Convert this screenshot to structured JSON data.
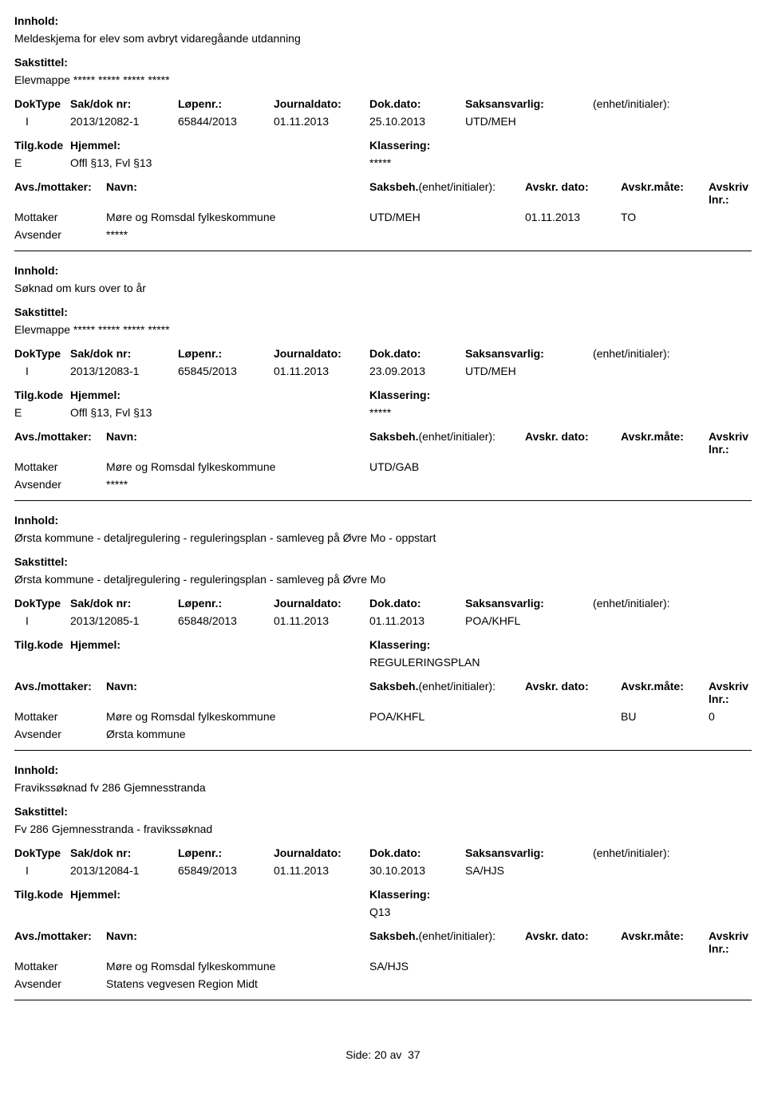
{
  "labels": {
    "innhold": "Innhold:",
    "sakstittel": "Sakstittel:",
    "doktype": "DokType",
    "sakdok": "Sak/dok nr:",
    "lopenr": "Løpenr.:",
    "journaldato": "Journaldato:",
    "dokdato": "Dok.dato:",
    "saksansvarlig": "Saksansvarlig:",
    "enhet": "(enhet/initialer):",
    "tilgkode": "Tilg.kode",
    "hjemmel": "Hjemmel:",
    "klassering": "Klassering:",
    "avsmottaker": "Avs./mottaker:",
    "navn": "Navn:",
    "saksbeh": "Saksbeh.",
    "saksbeh_enhet": "(enhet/initialer):",
    "avskr_dato": "Avskr. dato:",
    "avskr_mate": "Avskr.måte:",
    "avskriv_lnr": "Avskriv lnr.:",
    "mottaker": "Mottaker",
    "avsender": "Avsender"
  },
  "footer": {
    "side": "Side:",
    "page": "20",
    "av": "av",
    "total": "37"
  },
  "records": [
    {
      "innhold": "Meldeskjema for elev som avbryt vidaregåande utdanning",
      "sakstittel": "Elevmappe ***** ***** ***** *****",
      "doktype": "I",
      "sakdok": "2013/12082-1",
      "lopenr": "65844/2013",
      "journaldato": "01.11.2013",
      "dokdato": "25.10.2013",
      "ansvarlig": "UTD/MEH",
      "tilgkode": "E",
      "hjemmel": "Offl §13, Fvl §13",
      "klassering": "*****",
      "parts": [
        {
          "role": "Mottaker",
          "navn": "Møre og Romsdal fylkeskommune",
          "beh": "UTD/MEH",
          "avdato": "01.11.2013",
          "avmate": "TO",
          "avlnr": ""
        },
        {
          "role": "Avsender",
          "navn": "*****",
          "beh": "",
          "avdato": "",
          "avmate": "",
          "avlnr": ""
        }
      ]
    },
    {
      "innhold": "Søknad om kurs over to år",
      "sakstittel": "Elevmappe ***** ***** ***** *****",
      "doktype": "I",
      "sakdok": "2013/12083-1",
      "lopenr": "65845/2013",
      "journaldato": "01.11.2013",
      "dokdato": "23.09.2013",
      "ansvarlig": "UTD/MEH",
      "tilgkode": "E",
      "hjemmel": "Offl §13, Fvl §13",
      "klassering": "*****",
      "parts": [
        {
          "role": "Mottaker",
          "navn": "Møre og Romsdal fylkeskommune",
          "beh": "UTD/GAB",
          "avdato": "",
          "avmate": "",
          "avlnr": ""
        },
        {
          "role": "Avsender",
          "navn": "*****",
          "beh": "",
          "avdato": "",
          "avmate": "",
          "avlnr": ""
        }
      ]
    },
    {
      "innhold": "Ørsta kommune - detaljregulering - reguleringsplan - samleveg på Øvre Mo - oppstart",
      "sakstittel": "Ørsta kommune - detaljregulering - reguleringsplan - samleveg på Øvre Mo",
      "doktype": "I",
      "sakdok": "2013/12085-1",
      "lopenr": "65848/2013",
      "journaldato": "01.11.2013",
      "dokdato": "01.11.2013",
      "ansvarlig": "POA/KHFL",
      "tilgkode": "",
      "hjemmel": "",
      "klassering": "REGULERINGSPLAN",
      "parts": [
        {
          "role": "Mottaker",
          "navn": "Møre og Romsdal fylkeskommune",
          "beh": "POA/KHFL",
          "avdato": "",
          "avmate": "BU",
          "avlnr": "0"
        },
        {
          "role": "Avsender",
          "navn": "Ørsta kommune",
          "beh": "",
          "avdato": "",
          "avmate": "",
          "avlnr": ""
        }
      ]
    },
    {
      "innhold": "Fravikssøknad fv 286 Gjemnesstranda",
      "sakstittel": "Fv 286 Gjemnesstranda - fravikssøknad",
      "doktype": "I",
      "sakdok": "2013/12084-1",
      "lopenr": "65849/2013",
      "journaldato": "01.11.2013",
      "dokdato": "30.10.2013",
      "ansvarlig": "SA/HJS",
      "tilgkode": "",
      "hjemmel": "",
      "klassering": "Q13",
      "parts": [
        {
          "role": "Mottaker",
          "navn": "Møre og Romsdal fylkeskommune",
          "beh": "SA/HJS",
          "avdato": "",
          "avmate": "",
          "avlnr": ""
        },
        {
          "role": "Avsender",
          "navn": "Statens vegvesen Region Midt",
          "beh": "",
          "avdato": "",
          "avmate": "",
          "avlnr": ""
        }
      ]
    }
  ]
}
